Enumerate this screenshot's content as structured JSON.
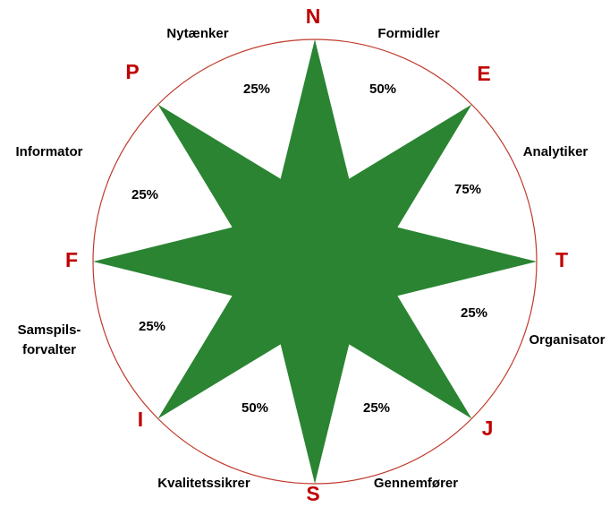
{
  "compass": {
    "points": [
      {
        "letter": "N",
        "role": "Formidler",
        "percent": "50%"
      },
      {
        "letter": "E",
        "role": "Analytiker",
        "percent": "75%"
      },
      {
        "letter": "T",
        "role": "Organisator",
        "percent": "25%"
      },
      {
        "letter": "J",
        "role": "Gennemfører",
        "percent": "25%"
      },
      {
        "letter": "S",
        "role": "Kvalitetssikrer",
        "percent": "50%"
      },
      {
        "letter": "I",
        "role": "Samspils-\nforvalter",
        "percent": "25%"
      },
      {
        "letter": "F",
        "role": "Informator",
        "percent": "25%"
      },
      {
        "letter": "P",
        "role": "Nytænker",
        "percent": "25%"
      }
    ]
  }
}
